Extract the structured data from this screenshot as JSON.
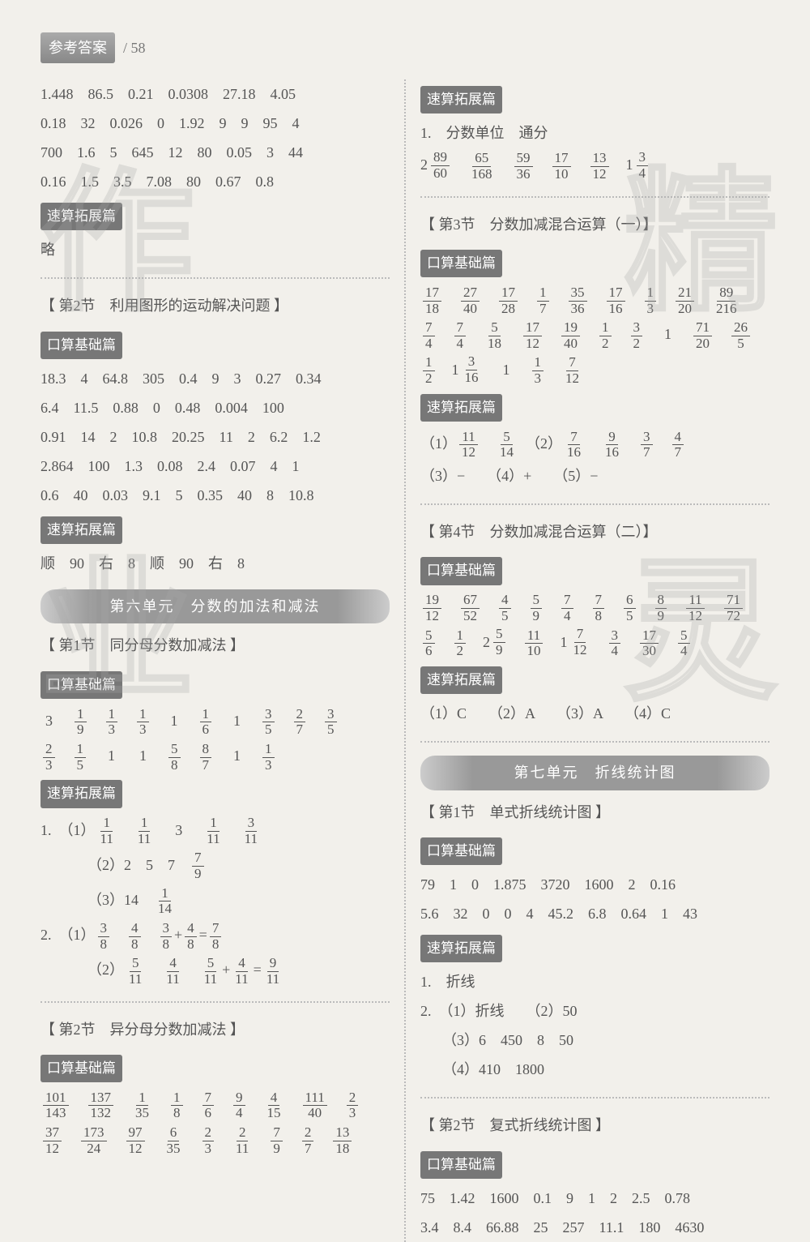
{
  "header": {
    "label": "参考答案",
    "page": "/ 58"
  },
  "watermarks": [
    "作",
    "精",
    "业",
    "灵"
  ],
  "left": {
    "intro_lines": [
      "1.448　86.5　0.21　0.0308　27.18　4.05",
      "0.18　32　0.026　0　1.92　9　9　95　4",
      "700　1.6　5　645　12　80　0.05　3　44",
      "0.16　1.5　3.5　7.08　80　0.67　0.8"
    ],
    "tag_ext": "速算拓展篇",
    "ext_line": "略",
    "sec2_title": "【 第2节　利用图形的运动解决问题 】",
    "tag_basic": "口算基础篇",
    "sec2_basic": [
      "18.3　4　64.8　305　0.4　9　3　0.27　0.34",
      "6.4　11.5　0.88　0　0.48　0.004　100",
      "0.91　14　2　10.8　20.25　11　2　6.2　1.2",
      "2.864　100　1.3　0.08　2.4　0.07　4　1",
      "0.6　40　0.03　9.1　5　0.35　40　8　10.8"
    ],
    "sec2_ext": "顺　90　右　8　顺　90　右　8",
    "unit6_banner": "第六单元　分数的加法和减法",
    "u6s1_title": "【 第1节　同分母分数加减法 】",
    "u6s1_basic_row1": [
      {
        "t": "i",
        "v": "3"
      },
      {
        "t": "f",
        "n": "1",
        "d": "9"
      },
      {
        "t": "f",
        "n": "1",
        "d": "3"
      },
      {
        "t": "f",
        "n": "1",
        "d": "3"
      },
      {
        "t": "i",
        "v": "1"
      },
      {
        "t": "f",
        "n": "1",
        "d": "6"
      },
      {
        "t": "i",
        "v": "1"
      },
      {
        "t": "f",
        "n": "3",
        "d": "5"
      },
      {
        "t": "f",
        "n": "2",
        "d": "7"
      },
      {
        "t": "f",
        "n": "3",
        "d": "5"
      }
    ],
    "u6s1_basic_row2": [
      {
        "t": "f",
        "n": "2",
        "d": "3"
      },
      {
        "t": "f",
        "n": "1",
        "d": "5"
      },
      {
        "t": "i",
        "v": "1"
      },
      {
        "t": "i",
        "v": "1"
      },
      {
        "t": "f",
        "n": "5",
        "d": "8"
      },
      {
        "t": "f",
        "n": "8",
        "d": "7"
      },
      {
        "t": "i",
        "v": "1"
      },
      {
        "t": "f",
        "n": "1",
        "d": "3"
      }
    ],
    "u6s1_ext": {
      "l1": {
        "pre": "1.　（1）",
        "items": [
          {
            "t": "f",
            "n": "1",
            "d": "11"
          },
          {
            "t": "f",
            "n": "1",
            "d": "11"
          },
          {
            "t": "i",
            "v": "3"
          },
          {
            "t": "f",
            "n": "1",
            "d": "11"
          },
          {
            "t": "f",
            "n": "3",
            "d": "11"
          }
        ]
      },
      "l2": {
        "pre": "（2）2　5　7　",
        "items": [
          {
            "t": "f",
            "n": "7",
            "d": "9"
          }
        ]
      },
      "l3": {
        "pre": "（3）14　",
        "items": [
          {
            "t": "f",
            "n": "1",
            "d": "14"
          }
        ]
      },
      "l4": {
        "pre": "2.　（1）",
        "a": {
          "n": "3",
          "d": "8"
        },
        "b": {
          "n": "4",
          "d": "8"
        },
        "op": "+",
        "r": {
          "n": "7",
          "d": "8"
        }
      },
      "l5": {
        "pre": "（2）",
        "a": {
          "n": "5",
          "d": "11"
        },
        "b": {
          "n": "4",
          "d": "11"
        },
        "op": "+",
        "r": {
          "n": "9",
          "d": "11"
        }
      }
    },
    "u6s2_title": "【 第2节　异分母分数加减法 】",
    "u6s2_row1": [
      {
        "t": "f",
        "n": "101",
        "d": "143"
      },
      {
        "t": "f",
        "n": "137",
        "d": "132"
      },
      {
        "t": "f",
        "n": "1",
        "d": "35"
      },
      {
        "t": "f",
        "n": "1",
        "d": "8"
      },
      {
        "t": "f",
        "n": "7",
        "d": "6"
      },
      {
        "t": "f",
        "n": "9",
        "d": "4"
      },
      {
        "t": "f",
        "n": "4",
        "d": "15"
      },
      {
        "t": "f",
        "n": "111",
        "d": "40"
      },
      {
        "t": "f",
        "n": "2",
        "d": "3"
      }
    ],
    "u6s2_row2": [
      {
        "t": "f",
        "n": "37",
        "d": "12"
      },
      {
        "t": "f",
        "n": "173",
        "d": "24"
      },
      {
        "t": "f",
        "n": "97",
        "d": "12"
      },
      {
        "t": "f",
        "n": "6",
        "d": "35"
      },
      {
        "t": "f",
        "n": "2",
        "d": "3"
      },
      {
        "t": "f",
        "n": "2",
        "d": "11"
      },
      {
        "t": "f",
        "n": "7",
        "d": "9"
      },
      {
        "t": "f",
        "n": "2",
        "d": "7"
      },
      {
        "t": "f",
        "n": "13",
        "d": "18"
      }
    ]
  },
  "right": {
    "ext_line1": "1.　分数单位　通分",
    "ext_row2": [
      {
        "t": "m",
        "w": "2",
        "n": "89",
        "d": "60"
      },
      {
        "t": "f",
        "n": "65",
        "d": "168"
      },
      {
        "t": "f",
        "n": "59",
        "d": "36"
      },
      {
        "t": "f",
        "n": "17",
        "d": "10"
      },
      {
        "t": "f",
        "n": "13",
        "d": "12"
      },
      {
        "t": "m",
        "w": "1",
        "n": "3",
        "d": "4"
      }
    ],
    "s3_title": "【 第3节　分数加减混合运算（一）】",
    "s3_row1": [
      {
        "t": "f",
        "n": "17",
        "d": "18"
      },
      {
        "t": "f",
        "n": "27",
        "d": "40"
      },
      {
        "t": "f",
        "n": "17",
        "d": "28"
      },
      {
        "t": "f",
        "n": "1",
        "d": "7"
      },
      {
        "t": "f",
        "n": "35",
        "d": "36"
      },
      {
        "t": "f",
        "n": "17",
        "d": "16"
      },
      {
        "t": "f",
        "n": "1",
        "d": "3"
      },
      {
        "t": "f",
        "n": "21",
        "d": "20"
      },
      {
        "t": "f",
        "n": "89",
        "d": "216"
      }
    ],
    "s3_row2": [
      {
        "t": "f",
        "n": "7",
        "d": "4"
      },
      {
        "t": "f",
        "n": "7",
        "d": "4"
      },
      {
        "t": "f",
        "n": "5",
        "d": "18"
      },
      {
        "t": "f",
        "n": "17",
        "d": "12"
      },
      {
        "t": "f",
        "n": "19",
        "d": "40"
      },
      {
        "t": "f",
        "n": "1",
        "d": "2"
      },
      {
        "t": "f",
        "n": "3",
        "d": "2"
      },
      {
        "t": "i",
        "v": "1"
      },
      {
        "t": "f",
        "n": "71",
        "d": "20"
      },
      {
        "t": "f",
        "n": "26",
        "d": "5"
      }
    ],
    "s3_row3": [
      {
        "t": "f",
        "n": "1",
        "d": "2"
      },
      {
        "t": "m",
        "w": "1",
        "n": "3",
        "d": "16"
      },
      {
        "t": "i",
        "v": "1"
      },
      {
        "t": "f",
        "n": "1",
        "d": "3"
      },
      {
        "t": "f",
        "n": "7",
        "d": "12"
      }
    ],
    "s3_ext_l1": {
      "pre": "（1）",
      "a": {
        "n": "11",
        "d": "12"
      },
      "b": {
        "n": "5",
        "d": "14"
      },
      "sep": "　（2）",
      "c": {
        "n": "7",
        "d": "16"
      },
      "d": {
        "n": "9",
        "d": "16"
      },
      "e": {
        "n": "3",
        "d": "7"
      },
      "f": {
        "n": "4",
        "d": "7"
      }
    },
    "s3_ext_l2": "（3）−　　（4）+　　（5）−",
    "s4_title": "【 第4节　分数加减混合运算（二）】",
    "s4_row1": [
      {
        "t": "f",
        "n": "19",
        "d": "12"
      },
      {
        "t": "f",
        "n": "67",
        "d": "52"
      },
      {
        "t": "f",
        "n": "4",
        "d": "5"
      },
      {
        "t": "f",
        "n": "5",
        "d": "9"
      },
      {
        "t": "f",
        "n": "7",
        "d": "4"
      },
      {
        "t": "f",
        "n": "7",
        "d": "8"
      },
      {
        "t": "f",
        "n": "6",
        "d": "5"
      },
      {
        "t": "f",
        "n": "8",
        "d": "9"
      },
      {
        "t": "f",
        "n": "11",
        "d": "12"
      },
      {
        "t": "f",
        "n": "71",
        "d": "72"
      }
    ],
    "s4_row2": [
      {
        "t": "f",
        "n": "5",
        "d": "6"
      },
      {
        "t": "f",
        "n": "1",
        "d": "2"
      },
      {
        "t": "m",
        "w": "2",
        "n": "5",
        "d": "9"
      },
      {
        "t": "f",
        "n": "11",
        "d": "10"
      },
      {
        "t": "m",
        "w": "1",
        "n": "7",
        "d": "12"
      },
      {
        "t": "f",
        "n": "3",
        "d": "4"
      },
      {
        "t": "f",
        "n": "17",
        "d": "30"
      },
      {
        "t": "f",
        "n": "5",
        "d": "4"
      }
    ],
    "s4_ext": "（1）C　　（2）A　　（3）A　　（4）C",
    "unit7_banner": "第七单元　折线统计图",
    "u7s1_title": "【 第1节　单式折线统计图 】",
    "u7s1_basic": [
      "79　1　0　1.875　3720　1600　2　0.16",
      "5.6　32　0　0　4　45.2　6.8　0.64　1　43"
    ],
    "u7s1_ext": [
      "1.　折线",
      "2.　（1）折线　　（2）50",
      "　　（3）6　450　8　50",
      "　　（4）410　1800"
    ],
    "u7s2_title": "【 第2节　复式折线统计图 】",
    "u7s2_basic": [
      "75　1.42　1600　0.1　9　1　2　2.5　0.78",
      "3.4　8.4　66.88　25　257　11.1　180　4630"
    ]
  }
}
